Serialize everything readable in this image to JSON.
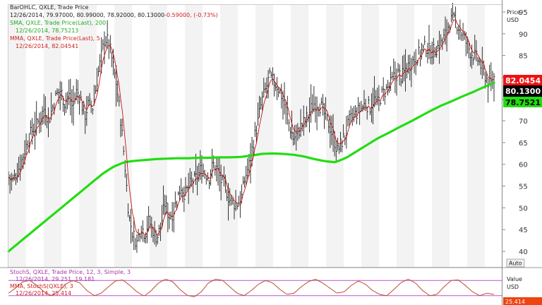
{
  "legend": {
    "price_header": "BarOHLC, QXLE, Trade Price",
    "price_line": "12/26/2014, 79.97000, 80.99000, 78.92000, 80.13000",
    "price_change": "-0.59000, (-0.73%)",
    "sma_header": "SMA, QXLE, Trade Price(Last), 200",
    "sma_value": "12/26/2014, 78.75213",
    "mma_header": "MMA, QXLE, Trade Price(Last), 5",
    "mma_value": "12/26/2014, 82.04541",
    "stoch_header": "StochS, QXLE, Trade Price, 12, 3, Simple, 3",
    "stoch_value": "12/26/2014, 29.251, 19.181",
    "mma2_header": "MMA, StochS(QXLE), 3",
    "mma2_value": "12/26/2014, 25.414"
  },
  "axis": {
    "price_title": "Price",
    "price_unit": "USD",
    "value_title": "Value",
    "value_unit": "USD",
    "auto_button": "Auto",
    "ticks": [
      "95",
      "90",
      "85",
      "80",
      "75",
      "70",
      "65",
      "60",
      "55",
      "50",
      "45",
      "40"
    ]
  },
  "tags": {
    "mma": "82.0454",
    "close": "80.1300",
    "sma": "78.7521",
    "stoch": "25.414"
  },
  "colors": {
    "bars": "#000000",
    "sma": "#22dd11",
    "mma": "#cc1111",
    "stoch_line": "#b9502a",
    "band": "#bb55cc",
    "legend_text": "#222222",
    "legend_green": "#22aa22",
    "legend_red": "#cc2222",
    "legend_purple": "#aa33aa",
    "tag_mma_bg": "#ee1111",
    "tag_close_bg": "#000000",
    "tag_sma_bg": "#22dd11",
    "tag_stoch_bg": "#ee4411"
  },
  "chart_data": [
    {
      "type": "line",
      "title": "BarOHLC, QXLE, Trade Price",
      "y_unit": "USD",
      "ylim": [
        37,
        96
      ],
      "x_end": "12/26/2014",
      "last_bar": {
        "date": "12/26/2014",
        "open": 79.97,
        "high": 80.99,
        "low": 78.92,
        "close": 80.13,
        "change": -0.59,
        "change_pct": -0.73
      },
      "close_series": [
        57,
        56,
        58,
        60,
        63,
        66,
        68,
        69,
        71,
        73,
        70,
        73,
        76,
        77,
        74,
        76,
        73,
        77,
        75,
        71,
        74,
        73,
        79,
        84,
        89,
        88,
        83,
        78,
        70,
        60,
        48,
        44,
        42,
        46,
        44,
        47,
        45,
        43,
        46,
        51,
        48,
        49,
        52,
        55,
        53,
        55,
        56,
        57,
        59,
        58,
        57,
        60,
        59,
        56,
        55,
        52,
        51,
        51,
        52,
        57,
        60,
        65,
        69,
        74,
        77,
        80,
        79,
        78,
        76,
        73,
        69,
        66,
        67,
        69,
        70,
        72,
        74,
        74,
        73,
        71,
        69,
        66,
        63,
        65,
        67,
        70,
        71,
        72,
        73,
        74,
        73,
        75,
        74,
        76,
        77,
        78,
        80,
        81,
        80,
        82,
        83,
        84,
        85,
        86,
        87,
        86,
        86,
        87,
        88,
        90,
        93,
        93,
        92,
        90,
        88,
        86,
        85,
        84,
        82,
        80,
        78,
        80
      ],
      "sma_200": [
        40,
        42,
        44,
        46,
        48,
        50,
        52,
        54,
        56,
        58,
        59.5,
        60.5,
        60.8,
        61.0,
        61.2,
        61.3,
        61.4,
        61.4,
        61.5,
        61.5,
        61.6,
        61.6,
        61.7,
        62,
        62.4,
        62.5,
        62.4,
        62.2,
        61.8,
        61.2,
        60.7,
        60.5,
        61.5,
        63,
        64.5,
        66,
        67.2,
        68.5,
        69.7,
        71,
        72.3,
        73.5,
        74.5,
        75.6,
        76.6,
        77.7,
        78.75
      ],
      "mma_5": {
        "last": 82.04541
      },
      "series": [
        {
          "name": "SMA, QXLE, Trade Price(Last), 200",
          "last": 78.75213
        },
        {
          "name": "MMA, QXLE, Trade Price(Last), 5",
          "last": 82.04541
        }
      ]
    },
    {
      "type": "line",
      "title": "StochS, QXLE, Trade Price, 12, 3, Simple, 3",
      "ylim": [
        0,
        100
      ],
      "bands": [
        80,
        20
      ],
      "stoch": [
        30,
        50,
        75,
        80,
        60,
        35,
        20,
        35,
        65,
        80,
        70,
        40,
        20,
        30,
        55,
        78,
        82,
        60,
        35,
        18,
        40,
        70,
        85,
        75,
        45,
        22,
        15,
        35,
        70,
        85,
        80,
        55,
        30,
        20,
        40,
        65,
        80,
        70,
        45,
        25,
        30,
        55,
        75,
        85,
        70,
        50,
        30,
        35,
        60,
        78,
        65,
        40,
        25,
        20,
        45,
        72,
        85,
        70,
        40,
        20,
        25,
        55,
        80,
        82,
        60,
        35,
        20,
        30,
        25
      ],
      "series": [
        {
          "name": "StochS",
          "last": [
            29.251,
            19.181
          ]
        },
        {
          "name": "MMA, StochS(QXLE), 3",
          "last": 25.414
        }
      ]
    }
  ]
}
